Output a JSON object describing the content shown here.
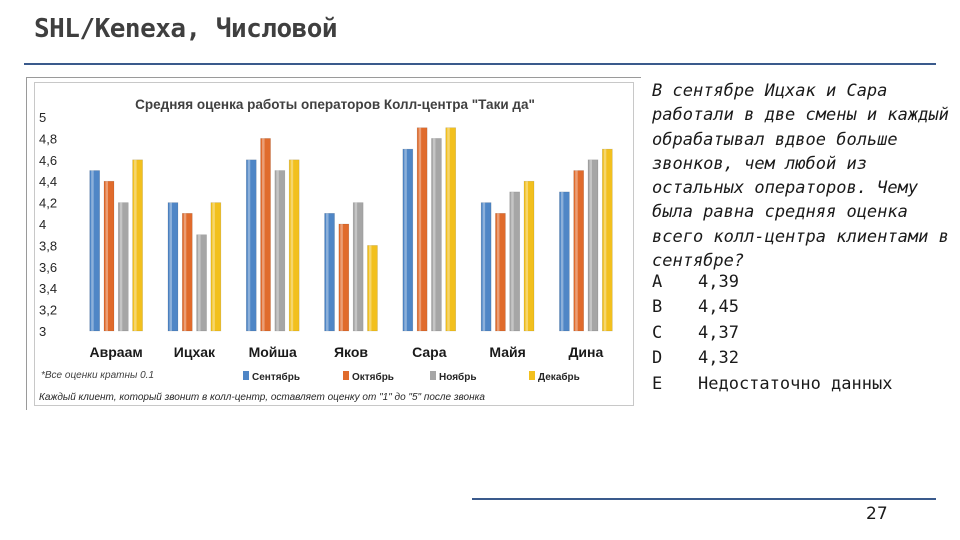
{
  "slide": {
    "title": "SHL/Kenexa, Числовой",
    "page_number": "27",
    "accent_color": "#3a5a8c"
  },
  "question": {
    "text": "В сентябре Ицхак и Сара работали в две смены и каждый обрабатывал вдвое больше звонков, чем любой из остальных операторов. Чему была равна средняя оценка всего колл-центра клиентами в сентябре?",
    "options": [
      {
        "letter": "A",
        "text": "4,39"
      },
      {
        "letter": "B",
        "text": "4,45"
      },
      {
        "letter": "C",
        "text": "4,37"
      },
      {
        "letter": "D",
        "text": "4,32"
      },
      {
        "letter": "E",
        "text": "Недостаточно данных"
      }
    ]
  },
  "chart_data": {
    "type": "bar",
    "title": "Средняя оценка работы операторов Колл-центра \"Таки да\"",
    "categories": [
      "Авраам",
      "Ицхак",
      "Мойша",
      "Яков",
      "Сара",
      "Майя",
      "Дина"
    ],
    "series": [
      {
        "name": "Сентябрь",
        "color": "#4f86c6",
        "values": [
          4.5,
          4.2,
          4.6,
          4.1,
          4.7,
          4.2,
          4.3
        ]
      },
      {
        "name": "Октябрь",
        "color": "#e06b2c",
        "values": [
          4.4,
          4.1,
          4.8,
          4.0,
          4.9,
          4.1,
          4.5
        ]
      },
      {
        "name": "Ноябрь",
        "color": "#a6a6a6",
        "values": [
          4.2,
          3.9,
          4.5,
          4.2,
          4.8,
          4.3,
          4.6
        ]
      },
      {
        "name": "Декабрь",
        "color": "#f2c01e",
        "values": [
          4.6,
          4.2,
          4.6,
          3.8,
          4.9,
          4.4,
          4.7
        ]
      }
    ],
    "y_ticks": [
      "3",
      "3,2",
      "3,4",
      "3,6",
      "3,8",
      "4",
      "4,2",
      "4,4",
      "4,6",
      "4,8",
      "5"
    ],
    "ylim": [
      3,
      5
    ],
    "grid": false,
    "legend_position": "bottom",
    "footnote": "*Все оценки кратны 0.1",
    "caption": "Каждый клиент, который звонит в колл-центр, оставляет оценку от \"1\" до \"5\" после звонка"
  }
}
